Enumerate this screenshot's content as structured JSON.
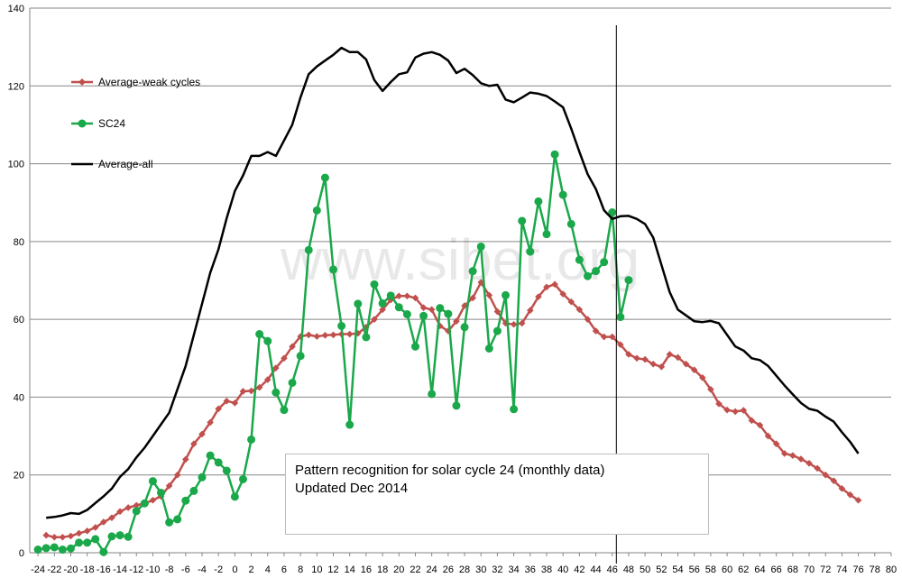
{
  "chart_data": {
    "type": "line",
    "title": "",
    "xlabel": "",
    "ylabel": "",
    "watermark": "www.sibet.org",
    "annotation_lines": [
      "Pattern recognition for solar cycle 24 (monthly data)",
      "Updated Dec 2014"
    ],
    "xlim": [
      -25,
      80
    ],
    "ylim": [
      0,
      140
    ],
    "y_ticks": [
      0,
      20,
      40,
      60,
      80,
      100,
      120,
      140
    ],
    "x_tick_labels": [
      "-24",
      "-22",
      "-20",
      "-18",
      "-16",
      "-14",
      "-12",
      "-10",
      "-8",
      "-6",
      "-4",
      "-2",
      "0",
      "2",
      "4",
      "6",
      "8",
      "10",
      "12",
      "14",
      "16",
      "18",
      "20",
      "22",
      "24",
      "26",
      "28",
      "30",
      "32",
      "34",
      "36",
      "38",
      "40",
      "42",
      "44",
      "46",
      "48",
      "50",
      "52",
      "54",
      "56",
      "58",
      "60",
      "62",
      "64",
      "66",
      "68",
      "70",
      "72",
      "74",
      "76",
      "78",
      "80"
    ],
    "grid": "horizontal",
    "legend_position": "upper-left",
    "vertical_marker_x": 46.5,
    "series": [
      {
        "name": "Average-weak cycles",
        "color": "#c0504d",
        "marker": "diamond",
        "x_start": -23,
        "values": [
          4.5,
          4,
          4,
          4.3,
          5,
          5.6,
          6.5,
          7.9,
          9,
          10.6,
          11.6,
          12.2,
          12.7,
          13.5,
          14.5,
          17.2,
          20,
          24,
          28,
          30.5,
          33.5,
          37,
          39,
          38.5,
          41.5,
          41.6,
          42.5,
          44.5,
          47.5,
          50,
          53,
          55.6,
          56,
          55.6,
          55.9,
          56,
          56.2,
          56.2,
          56.4,
          58,
          60,
          62.5,
          65,
          66,
          66,
          65.5,
          63,
          62.5,
          58.3,
          57,
          59.5,
          63.5,
          65.5,
          69.5,
          66.2,
          62,
          59,
          58.7,
          59,
          62.3,
          65.8,
          68.3,
          69,
          66.5,
          64.5,
          62.5,
          60,
          57,
          55.5,
          55.5,
          53.5,
          51,
          50,
          49.7,
          48.5,
          47.8,
          51,
          50.2,
          48.5,
          47,
          45,
          42,
          38.3,
          36.7,
          36.3,
          36.6,
          34,
          32.8,
          30,
          28,
          25.5,
          25,
          24.1,
          23,
          21.7,
          20,
          18.5,
          16.5,
          14.9,
          13.5
        ]
      },
      {
        "name": "SC24",
        "color": "#1aa84a",
        "marker": "circle",
        "x_start": -24,
        "values": [
          0.8,
          1.2,
          1.4,
          0.8,
          1.1,
          2.6,
          2.6,
          3.5,
          0.2,
          4.2,
          4.5,
          4.1,
          10.7,
          12.7,
          18.4,
          15.4,
          7.8,
          8.6,
          13.4,
          15.9,
          19.4,
          25,
          23.2,
          21.1,
          14.4,
          18.9,
          29.1,
          56.2,
          54.4,
          41.2,
          36.7,
          43.7,
          50.6,
          77.8,
          88,
          96.4,
          72.8,
          58.3,
          32.9,
          64,
          55.4,
          69,
          64.1,
          66.1,
          63.1,
          61.3,
          53,
          60.9,
          40.8,
          62.9,
          61.4,
          37.8,
          58,
          72.4,
          78.7,
          52.5,
          57,
          66.2,
          36.9,
          85.3,
          77.4,
          90.3,
          81.9,
          102.4,
          92,
          84.5,
          75.3,
          71.1,
          72.4,
          74.7,
          87.5,
          60.6,
          70.1
        ]
      },
      {
        "name": "Average-all",
        "color": "#000000",
        "marker": "none",
        "x_start": -23,
        "values": [
          9,
          9.2,
          9.6,
          10.2,
          10,
          11,
          12.8,
          14.5,
          16.5,
          19.5,
          21.5,
          24.5,
          27,
          30,
          33,
          36,
          42,
          48,
          56,
          64,
          72,
          78,
          86,
          93,
          97,
          102,
          102,
          103,
          102,
          106,
          110,
          117,
          123,
          125,
          126.5,
          128,
          129.8,
          128.7,
          128.7,
          126.8,
          121.5,
          118.7,
          121,
          123,
          123.5,
          127.3,
          128.3,
          128.7,
          128,
          126.5,
          123.3,
          124.4,
          122.8,
          120.7,
          120,
          120.3,
          116.5,
          115.8,
          117,
          118.3,
          118,
          117.4,
          116,
          114.5,
          109,
          103,
          97.3,
          93.5,
          88,
          85.8,
          86.5,
          86.6,
          85.8,
          84.5,
          81,
          74,
          67,
          62.5,
          61,
          59.5,
          59.3,
          59.6,
          59,
          56,
          53,
          52,
          50,
          49.5,
          48,
          45.5,
          43,
          40.7,
          38.5,
          37,
          36.5,
          35,
          33.7,
          31,
          28.5,
          25.5
        ]
      }
    ]
  }
}
